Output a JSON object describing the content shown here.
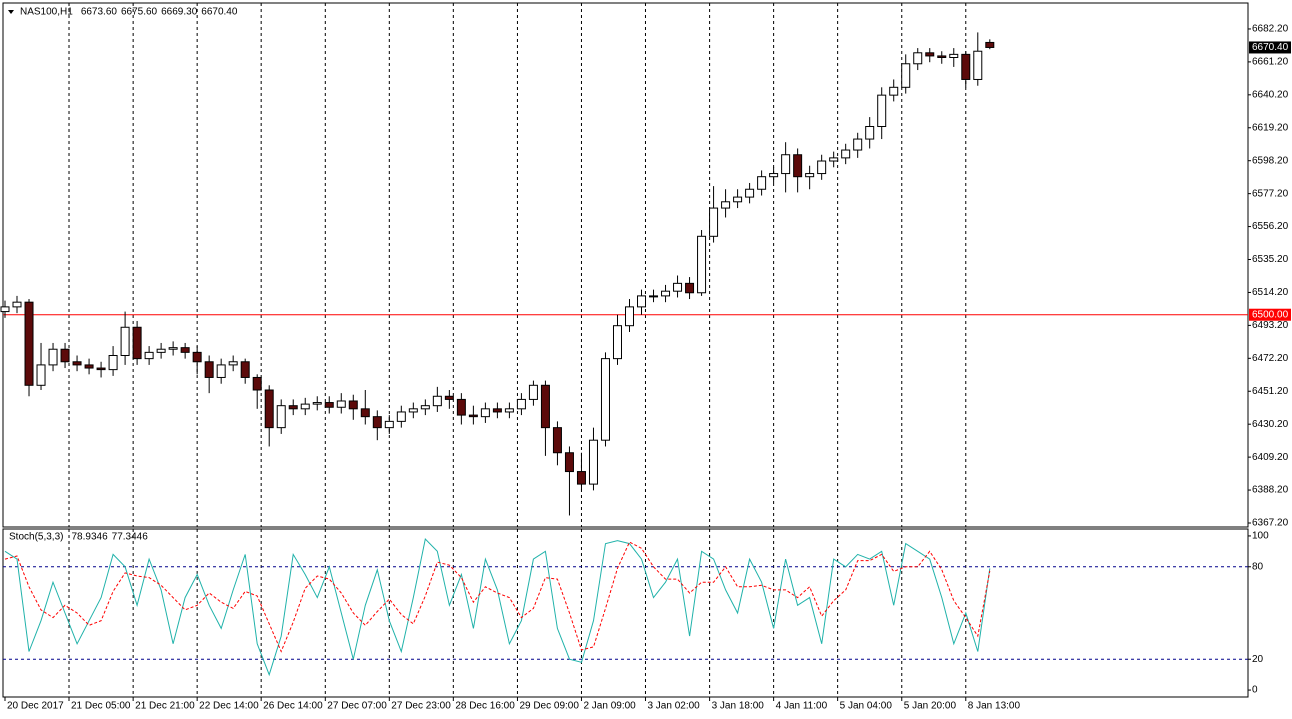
{
  "chart_data": [
    {
      "type": "candlestick",
      "title": "NAS100,H1",
      "header_values": [
        {
          "value": 6673.6,
          "label": "6673.60"
        },
        {
          "value": 6675.6,
          "label": "6675.60"
        },
        {
          "value": 6669.3,
          "label": "6669.30"
        },
        {
          "value": 6670.4,
          "label": "6670.40"
        }
      ],
      "open": [
        6502,
        6505,
        6508,
        6455,
        6468,
        6478,
        6470,
        6468,
        6466,
        6465,
        6474,
        6492,
        6472,
        6476,
        6478,
        6479,
        6476,
        6470,
        6460,
        6468,
        6470,
        6460,
        6452,
        6428,
        6442,
        6440,
        6443,
        6444,
        6441,
        6445,
        6440,
        6435,
        6428,
        6432,
        6438,
        6440,
        6442,
        6448,
        6446,
        6436,
        6435,
        6440,
        6438,
        6440,
        6446,
        6455,
        6428,
        6412,
        6400,
        6392,
        6420,
        6472,
        6493,
        6505,
        6512,
        6512,
        6515,
        6520,
        6514,
        6550,
        6568,
        6572,
        6575,
        6580,
        6588,
        6590,
        6602,
        6588,
        6590,
        6598,
        6600,
        6605,
        6612,
        6620,
        6640,
        6645,
        6660,
        6667,
        6665,
        6664,
        6666,
        6650,
        6673.6
      ],
      "high": [
        6509,
        6512,
        6510,
        6482,
        6482,
        6482,
        6474,
        6472,
        6470,
        6480,
        6502,
        6496,
        6480,
        6482,
        6483,
        6482,
        6480,
        6474,
        6472,
        6474,
        6472,
        6462,
        6455,
        6446,
        6446,
        6447,
        6448,
        6448,
        6450,
        6449,
        6452,
        6439,
        6436,
        6442,
        6444,
        6446,
        6454,
        6452,
        6450,
        6442,
        6444,
        6444,
        6444,
        6450,
        6458,
        6458,
        6432,
        6416,
        6412,
        6428,
        6476,
        6500,
        6510,
        6516,
        6516,
        6519,
        6525,
        6524,
        6554,
        6582,
        6580,
        6580,
        6584,
        6592,
        6594,
        6610,
        6606,
        6595,
        6602,
        6604,
        6609,
        6616,
        6626,
        6645,
        6650,
        6666,
        6670,
        6670,
        6668,
        6670,
        6668,
        6680,
        6675.6
      ],
      "low": [
        6498,
        6501,
        6448,
        6452,
        6464,
        6466,
        6464,
        6462,
        6460,
        6461,
        6468,
        6468,
        6468,
        6472,
        6474,
        6472,
        6462,
        6450,
        6456,
        6464,
        6456,
        6440,
        6416,
        6424,
        6436,
        6436,
        6439,
        6437,
        6437,
        6433,
        6430,
        6420,
        6424,
        6428,
        6434,
        6436,
        6438,
        6440,
        6430,
        6430,
        6431,
        6434,
        6434,
        6436,
        6442,
        6410,
        6404,
        6372,
        6388,
        6388,
        6416,
        6468,
        6489,
        6500,
        6508,
        6508,
        6511,
        6510,
        6512,
        6546,
        6562,
        6568,
        6571,
        6576,
        6584,
        6578,
        6578,
        6580,
        6586,
        6594,
        6596,
        6600,
        6606,
        6612,
        6636,
        6641,
        6656,
        6661,
        6660,
        6658,
        6645,
        6646,
        6669.3
      ],
      "close": [
        6505,
        6508,
        6455,
        6468,
        6478,
        6470,
        6468,
        6466,
        6465,
        6474,
        6492,
        6472,
        6476,
        6478,
        6479,
        6476,
        6470,
        6460,
        6468,
        6470,
        6460,
        6452,
        6428,
        6442,
        6440,
        6443,
        6444,
        6441,
        6445,
        6440,
        6435,
        6428,
        6432,
        6438,
        6440,
        6442,
        6448,
        6446,
        6436,
        6435,
        6440,
        6438,
        6440,
        6446,
        6455,
        6428,
        6412,
        6400,
        6392,
        6420,
        6472,
        6493,
        6505,
        6512,
        6512,
        6515,
        6520,
        6514,
        6550,
        6568,
        6572,
        6575,
        6580,
        6588,
        6590,
        6602,
        6588,
        6590,
        6598,
        6600,
        6605,
        6612,
        6620,
        6640,
        6645,
        6660,
        6667,
        6665,
        6664,
        6666,
        6650,
        6668,
        6670.4
      ],
      "up_color": "#ffffff",
      "down_color": "#5c0a0a",
      "xlim": [
        0,
        103.5
      ],
      "xticks": [
        {
          "value": 0,
          "label": "20 Dec 2017"
        },
        {
          "value": 5.33,
          "label": "21 Dec 05:00"
        },
        {
          "value": 10.67,
          "label": "21 Dec 21:00"
        },
        {
          "value": 16,
          "label": "22 Dec 14:00"
        },
        {
          "value": 21.33,
          "label": "26 Dec 14:00"
        },
        {
          "value": 26.67,
          "label": "27 Dec 07:00"
        },
        {
          "value": 32,
          "label": "27 Dec 23:00"
        },
        {
          "value": 37.33,
          "label": "28 Dec 16:00"
        },
        {
          "value": 42.67,
          "label": "29 Dec 09:00"
        },
        {
          "value": 48,
          "label": "2 Jan 09:00"
        },
        {
          "value": 53.33,
          "label": "3 Jan 02:00"
        },
        {
          "value": 58.67,
          "label": "3 Jan 18:00"
        },
        {
          "value": 64,
          "label": "4 Jan 11:00"
        },
        {
          "value": 69.33,
          "label": "5 Jan 04:00"
        },
        {
          "value": 74.67,
          "label": "5 Jan 20:00"
        },
        {
          "value": 80,
          "label": "8 Jan 13:00"
        }
      ],
      "ylim": [
        6364.65,
        6698.75
      ],
      "yticks": [
        {
          "value": 6682.2,
          "label": "6682.20"
        },
        {
          "value": 6661.2,
          "label": "6661.20"
        },
        {
          "value": 6640.2,
          "label": "6640.20"
        },
        {
          "value": 6619.2,
          "label": "6619.20"
        },
        {
          "value": 6598.2,
          "label": "6598.20"
        },
        {
          "value": 6577.2,
          "label": "6577.20"
        },
        {
          "value": 6556.2,
          "label": "6556.20"
        },
        {
          "value": 6535.2,
          "label": "6535.20"
        },
        {
          "value": 6514.2,
          "label": "6514.20"
        },
        {
          "value": 6493.2,
          "label": "6493.20"
        },
        {
          "value": 6472.2,
          "label": "6472.20"
        },
        {
          "value": 6451.2,
          "label": "6451.20"
        },
        {
          "value": 6430.2,
          "label": "6430.20"
        },
        {
          "value": 6409.2,
          "label": "6409.20"
        },
        {
          "value": 6388.2,
          "label": "6388.20"
        },
        {
          "value": 6367.2,
          "label": "6367.20"
        }
      ],
      "hline": {
        "value": 6500,
        "label": "6500.00",
        "color": "#ff0000"
      },
      "last_price": {
        "value": 6670.4,
        "label": "6670.40"
      },
      "grid": true
    },
    {
      "type": "line",
      "title": "Stoch(5,3,3)",
      "header_values": [
        78.9346,
        77.3446
      ],
      "xlim": [
        0,
        103.5
      ],
      "ylim": [
        -4.5,
        104.5
      ],
      "yticks": [
        0,
        20,
        80,
        100
      ],
      "levels": [
        20,
        80
      ],
      "level_color": "#00008b",
      "series": [
        {
          "color": "#20b2aa",
          "dashed": false,
          "values": [
            90,
            85,
            25,
            45,
            70,
            50,
            30,
            45,
            60,
            88,
            80,
            55,
            85,
            65,
            30,
            60,
            75,
            55,
            40,
            65,
            88,
            30,
            10,
            35,
            88,
            75,
            60,
            80,
            50,
            20,
            55,
            78,
            45,
            25,
            60,
            98,
            90,
            55,
            75,
            40,
            85,
            65,
            30,
            45,
            85,
            90,
            40,
            20,
            18,
            45,
            95,
            97,
            95,
            85,
            60,
            70,
            85,
            35,
            90,
            85,
            65,
            50,
            85,
            70,
            40,
            85,
            55,
            60,
            30,
            85,
            80,
            88,
            85,
            90,
            55,
            95,
            90,
            85,
            60,
            30,
            50,
            25,
            78.9346
          ]
        },
        {
          "color": "#ff0000",
          "dashed": true,
          "values": [
            85,
            87,
            67,
            52,
            47,
            55,
            50,
            42,
            45,
            64,
            76,
            74,
            73,
            68,
            60,
            52,
            55,
            63,
            57,
            53,
            64,
            61,
            43,
            25,
            44,
            66,
            74,
            72,
            63,
            50,
            42,
            51,
            59,
            49,
            43,
            61,
            83,
            81,
            73,
            57,
            67,
            63,
            60,
            47,
            53,
            73,
            72,
            50,
            26,
            28,
            53,
            79,
            96,
            92,
            80,
            72,
            72,
            63,
            70,
            70,
            80,
            67,
            67,
            68,
            65,
            65,
            60,
            67,
            48,
            58,
            65,
            84,
            84,
            88,
            77,
            80,
            80,
            90,
            78,
            58,
            47,
            35,
            77.3446
          ]
        }
      ]
    }
  ]
}
